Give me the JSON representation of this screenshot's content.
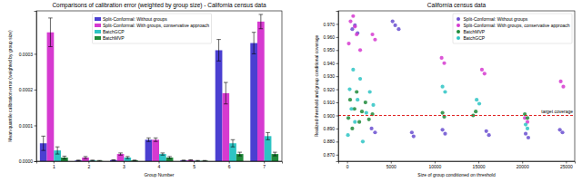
{
  "chart_data": [
    {
      "type": "bar",
      "title": "Comparisons of calibration error (weighted by group size) - California census data",
      "x_label": "Group Number",
      "y_label": "Mean quantile calibration error (weighted by group size)",
      "categories": [
        "1",
        "2",
        "3",
        "4",
        "5",
        "6",
        "7"
      ],
      "series": [
        {
          "name": "Split-Conformal: Without groups",
          "color": "#4b3fd1",
          "values": [
            5e-05,
            2e-06,
            3e-06,
            6e-05,
            2e-06,
            0.00031,
            0.00033
          ],
          "errors": [
            2e-05,
            1e-06,
            1e-06,
            5e-06,
            1e-06,
            3e-05,
            3e-05
          ]
        },
        {
          "name": "Split-Conformal: With groups, conservative approach",
          "color": "#d63ad0",
          "values": [
            0.00036,
            1e-05,
            2e-05,
            6e-05,
            3e-06,
            0.00019,
            0.00039
          ],
          "errors": [
            4e-05,
            3e-06,
            3e-06,
            5e-06,
            1e-06,
            3e-05,
            2e-05
          ]
        },
        {
          "name": "BatchGCP",
          "color": "#2ec4c4",
          "values": [
            3e-05,
            2e-06,
            1e-05,
            2e-05,
            1e-06,
            5e-05,
            7e-05
          ],
          "errors": [
            1e-05,
            1e-06,
            3e-06,
            3e-06,
            1e-06,
            1e-05,
            1e-05
          ]
        },
        {
          "name": "BatchMVP",
          "color": "#1f8a3a",
          "values": [
            1e-05,
            1e-06,
            2e-06,
            1e-05,
            1e-06,
            2e-05,
            2e-05
          ],
          "errors": [
            4e-06,
            1e-06,
            1e-06,
            3e-06,
            1e-06,
            5e-06,
            5e-06
          ]
        }
      ],
      "ylim": [
        0,
        0.00042
      ],
      "yticks": [
        {
          "value": 0,
          "label": "0.0000"
        },
        {
          "value": 0.0001,
          "label": "0.0001"
        },
        {
          "value": 0.0002,
          "label": "0.0002"
        },
        {
          "value": 0.0003,
          "label": "0.0003"
        }
      ],
      "grid": false,
      "legend": "upper center"
    },
    {
      "type": "scatter",
      "title": "California census data",
      "x_label": "Size of group conditioned on threshold",
      "y_label": "Realized threshold and group conditional coverage",
      "series": [
        {
          "name": "Split-Conformal: Without groups",
          "color": "#6a4fd0",
          "x": [
            600,
            900,
            1200,
            2800,
            3200,
            5200,
            5500,
            5900,
            7400,
            7600,
            10900,
            11200,
            15900,
            16200,
            20400,
            20700,
            24300,
            24600
          ],
          "values": [
            0.966,
            0.969,
            0.963,
            0.89,
            0.887,
            0.972,
            0.969,
            0.966,
            0.887,
            0.884,
            0.889,
            0.886,
            0.888,
            0.885,
            0.886,
            0.883,
            0.889,
            0.887
          ]
        },
        {
          "name": "Split-Conformal: With groups, conservative approach",
          "color": "#d63ad0",
          "x": [
            200,
            400,
            700,
            900,
            1100,
            1500,
            2900,
            3200,
            10800,
            11100,
            15400,
            15700,
            20300,
            20600,
            24400,
            24700
          ],
          "values": [
            0.955,
            0.972,
            0.976,
            0.968,
            0.962,
            0.95,
            0.962,
            0.958,
            0.944,
            0.94,
            0.935,
            0.932,
            0.898,
            0.895,
            0.926,
            0.922
          ]
        },
        {
          "name": "BatchMVP",
          "color": "#1f8a3a",
          "x": [
            150,
            350,
            600,
            850,
            1100,
            1400,
            1700,
            2100,
            2500,
            2900,
            10900,
            11100,
            14400,
            14700,
            20300,
            20600
          ],
          "values": [
            0.898,
            0.912,
            0.89,
            0.905,
            0.918,
            0.895,
            0.903,
            0.91,
            0.897,
            0.901,
            0.902,
            0.899,
            0.9,
            0.903,
            0.901,
            0.898
          ]
        },
        {
          "name": "BatchGCP",
          "color": "#2ec4c4",
          "x": [
            100,
            300,
            500,
            700,
            900,
            1200,
            1500,
            1800,
            2200,
            2600,
            3000,
            10900,
            11200,
            14800,
            15100,
            20400,
            20600
          ],
          "values": [
            0.885,
            0.92,
            0.905,
            0.935,
            0.895,
            0.912,
            0.928,
            0.88,
            0.902,
            0.918,
            0.908,
            0.922,
            0.918,
            0.912,
            0.909,
            0.893,
            0.89
          ]
        }
      ],
      "hline": {
        "value": 0.9,
        "label": "target coverage"
      },
      "xlim": [
        -1000,
        26000
      ],
      "xticks": [
        0,
        5000,
        10000,
        15000,
        20000,
        25000
      ],
      "ylim": [
        0.865,
        0.98
      ],
      "yticks": [
        {
          "value": 0.87,
          "label": "0.870"
        },
        {
          "value": 0.88,
          "label": "0.880"
        },
        {
          "value": 0.89,
          "label": "0.890"
        },
        {
          "value": 0.9,
          "label": "0.900"
        },
        {
          "value": 0.91,
          "label": "0.910"
        },
        {
          "value": 0.92,
          "label": "0.920"
        },
        {
          "value": 0.93,
          "label": "0.930"
        },
        {
          "value": 0.94,
          "label": "0.940"
        },
        {
          "value": 0.95,
          "label": "0.950"
        },
        {
          "value": 0.96,
          "label": "0.960"
        },
        {
          "value": 0.97,
          "label": "0.970"
        }
      ],
      "grid": false,
      "legend": "upper right"
    }
  ]
}
